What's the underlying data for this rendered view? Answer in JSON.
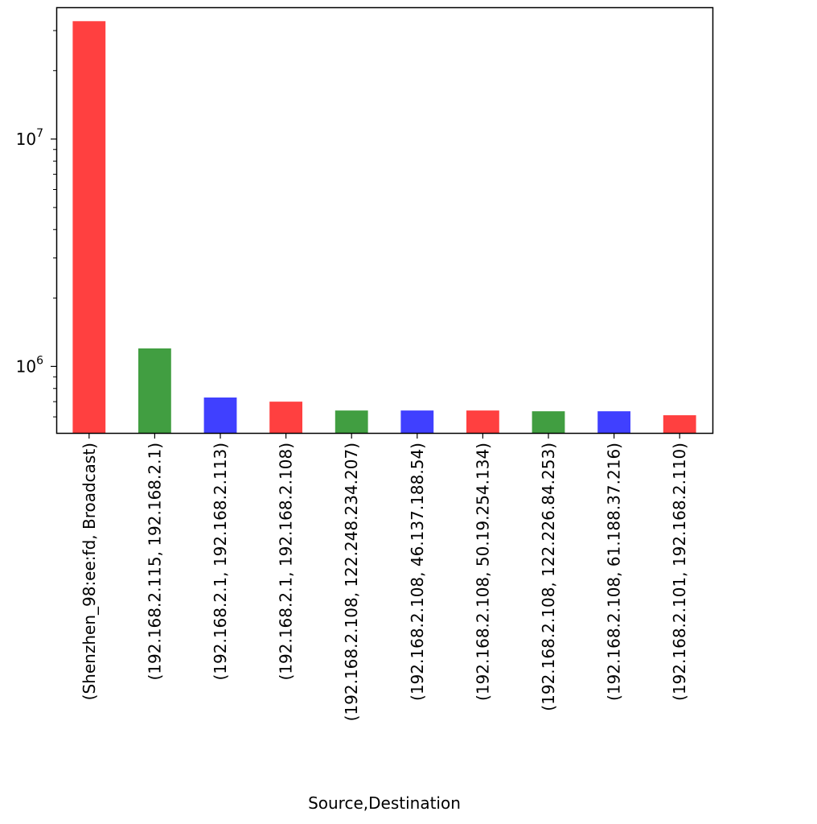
{
  "chart_data": {
    "type": "bar",
    "title": "",
    "xlabel": "Source,Destination",
    "ylabel": "",
    "yscale": "log",
    "ylim": [
      510000,
      38000000
    ],
    "grid": false,
    "legend": "none",
    "y_major_ticks": [
      {
        "value": 1000000,
        "base": "10",
        "exp": "6"
      },
      {
        "value": 10000000,
        "base": "10",
        "exp": "7"
      }
    ],
    "categories": [
      "(Shenzhen_98:ee:fd, Broadcast)",
      "(192.168.2.115, 192.168.2.1)",
      "(192.168.2.1, 192.168.2.113)",
      "(192.168.2.1, 192.168.2.108)",
      "(192.168.2.108, 122.248.234.207)",
      "(192.168.2.108, 46.137.188.54)",
      "(192.168.2.108, 50.19.254.134)",
      "(192.168.2.108, 122.226.84.253)",
      "(192.168.2.108, 61.188.37.216)",
      "(192.168.2.101, 192.168.2.110)"
    ],
    "values": [
      33000000,
      1200000,
      730000,
      700000,
      640000,
      640000,
      640000,
      635000,
      635000,
      610000
    ],
    "colors": [
      "#ff4040",
      "#419e41",
      "#4040ff",
      "#ff4040",
      "#419e41",
      "#4040ff",
      "#ff4040",
      "#419e41",
      "#4040ff",
      "#ff4040"
    ]
  }
}
